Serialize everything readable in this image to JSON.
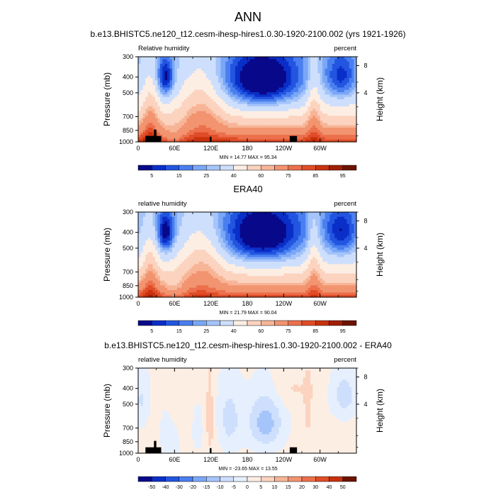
{
  "figure": {
    "main_title": "ANN"
  },
  "panels": [
    {
      "title": "b.e13.BHISTC5.ne120_t12.cesm-ihesp-hires1.0.30-1920-2100.002 (yrs 1921-1926)",
      "left_label": "Relative humidity",
      "right_label": "percent",
      "stats": "MIN = 14.77  MAX = 95.34",
      "colorbar": {
        "labels": [
          "5",
          "15",
          "25",
          "40",
          "60",
          "75",
          "85",
          "95"
        ],
        "colors": [
          "#08088a",
          "#0a2fc8",
          "#2255e0",
          "#4a7ff0",
          "#7aa7f7",
          "#a5c4fa",
          "#cddffc",
          "#fdeee4",
          "#fbd3bf",
          "#f7b597",
          "#f29470",
          "#ec704c",
          "#e04d28",
          "#c8320f",
          "#a11f05",
          "#6d1300"
        ]
      },
      "show_terrain": true
    },
    {
      "title": "ERA40",
      "left_label": "relative humidity",
      "right_label": "percent",
      "stats": "MIN = 21.79  MAX = 90.04",
      "colorbar": {
        "labels": [
          "5",
          "15",
          "25",
          "40",
          "60",
          "75",
          "85",
          "95"
        ],
        "colors": [
          "#08088a",
          "#0a2fc8",
          "#2255e0",
          "#4a7ff0",
          "#7aa7f7",
          "#a5c4fa",
          "#cddffc",
          "#fdeee4",
          "#fbd3bf",
          "#f7b597",
          "#f29470",
          "#ec704c",
          "#e04d28",
          "#c8320f",
          "#a11f05",
          "#6d1300"
        ]
      },
      "show_terrain": false
    },
    {
      "title": "b.e13.BHISTC5.ne120_t12.cesm-ihesp-hires1.0.30-1920-2100.002 - ERA40",
      "left_label": "relative humidity",
      "right_label": "percent",
      "stats": "MIN = -23.65  MAX = 13.55",
      "colorbar": {
        "labels": [
          "-50",
          "-40",
          "-30",
          "-20",
          "-15",
          "-10",
          "-5",
          "0",
          "5",
          "10",
          "15",
          "20",
          "30",
          "40",
          "50"
        ],
        "colors": [
          "#08088a",
          "#0a2fc8",
          "#2255e0",
          "#4a7ff0",
          "#7aa7f7",
          "#a5c4fa",
          "#cddffc",
          "#e6effd",
          "#fdeee4",
          "#fbd3bf",
          "#f7b597",
          "#f29470",
          "#ec704c",
          "#e04d28",
          "#c8320f",
          "#6d1300"
        ]
      },
      "show_terrain": true
    }
  ],
  "chart_data": {
    "type": "heatmap",
    "x_axis": {
      "ticks": [
        "0",
        "60E",
        "120E",
        "180",
        "120W",
        "60W"
      ],
      "tick_lon": [
        0,
        60,
        120,
        180,
        240,
        300
      ],
      "range": [
        0,
        360
      ]
    },
    "y_axis": {
      "label": "Pressure (mb)",
      "ticks": [
        300,
        400,
        500,
        700,
        850,
        1000
      ],
      "range": [
        1000,
        300
      ],
      "scale": "log"
    },
    "y2_axis": {
      "label": "Height (km)",
      "ticks": [
        4,
        8
      ]
    },
    "terrain_lon_segments": [
      [
        12,
        38
      ],
      [
        26,
        30
      ],
      [
        118,
        121
      ],
      [
        250,
        262
      ]
    ]
  }
}
